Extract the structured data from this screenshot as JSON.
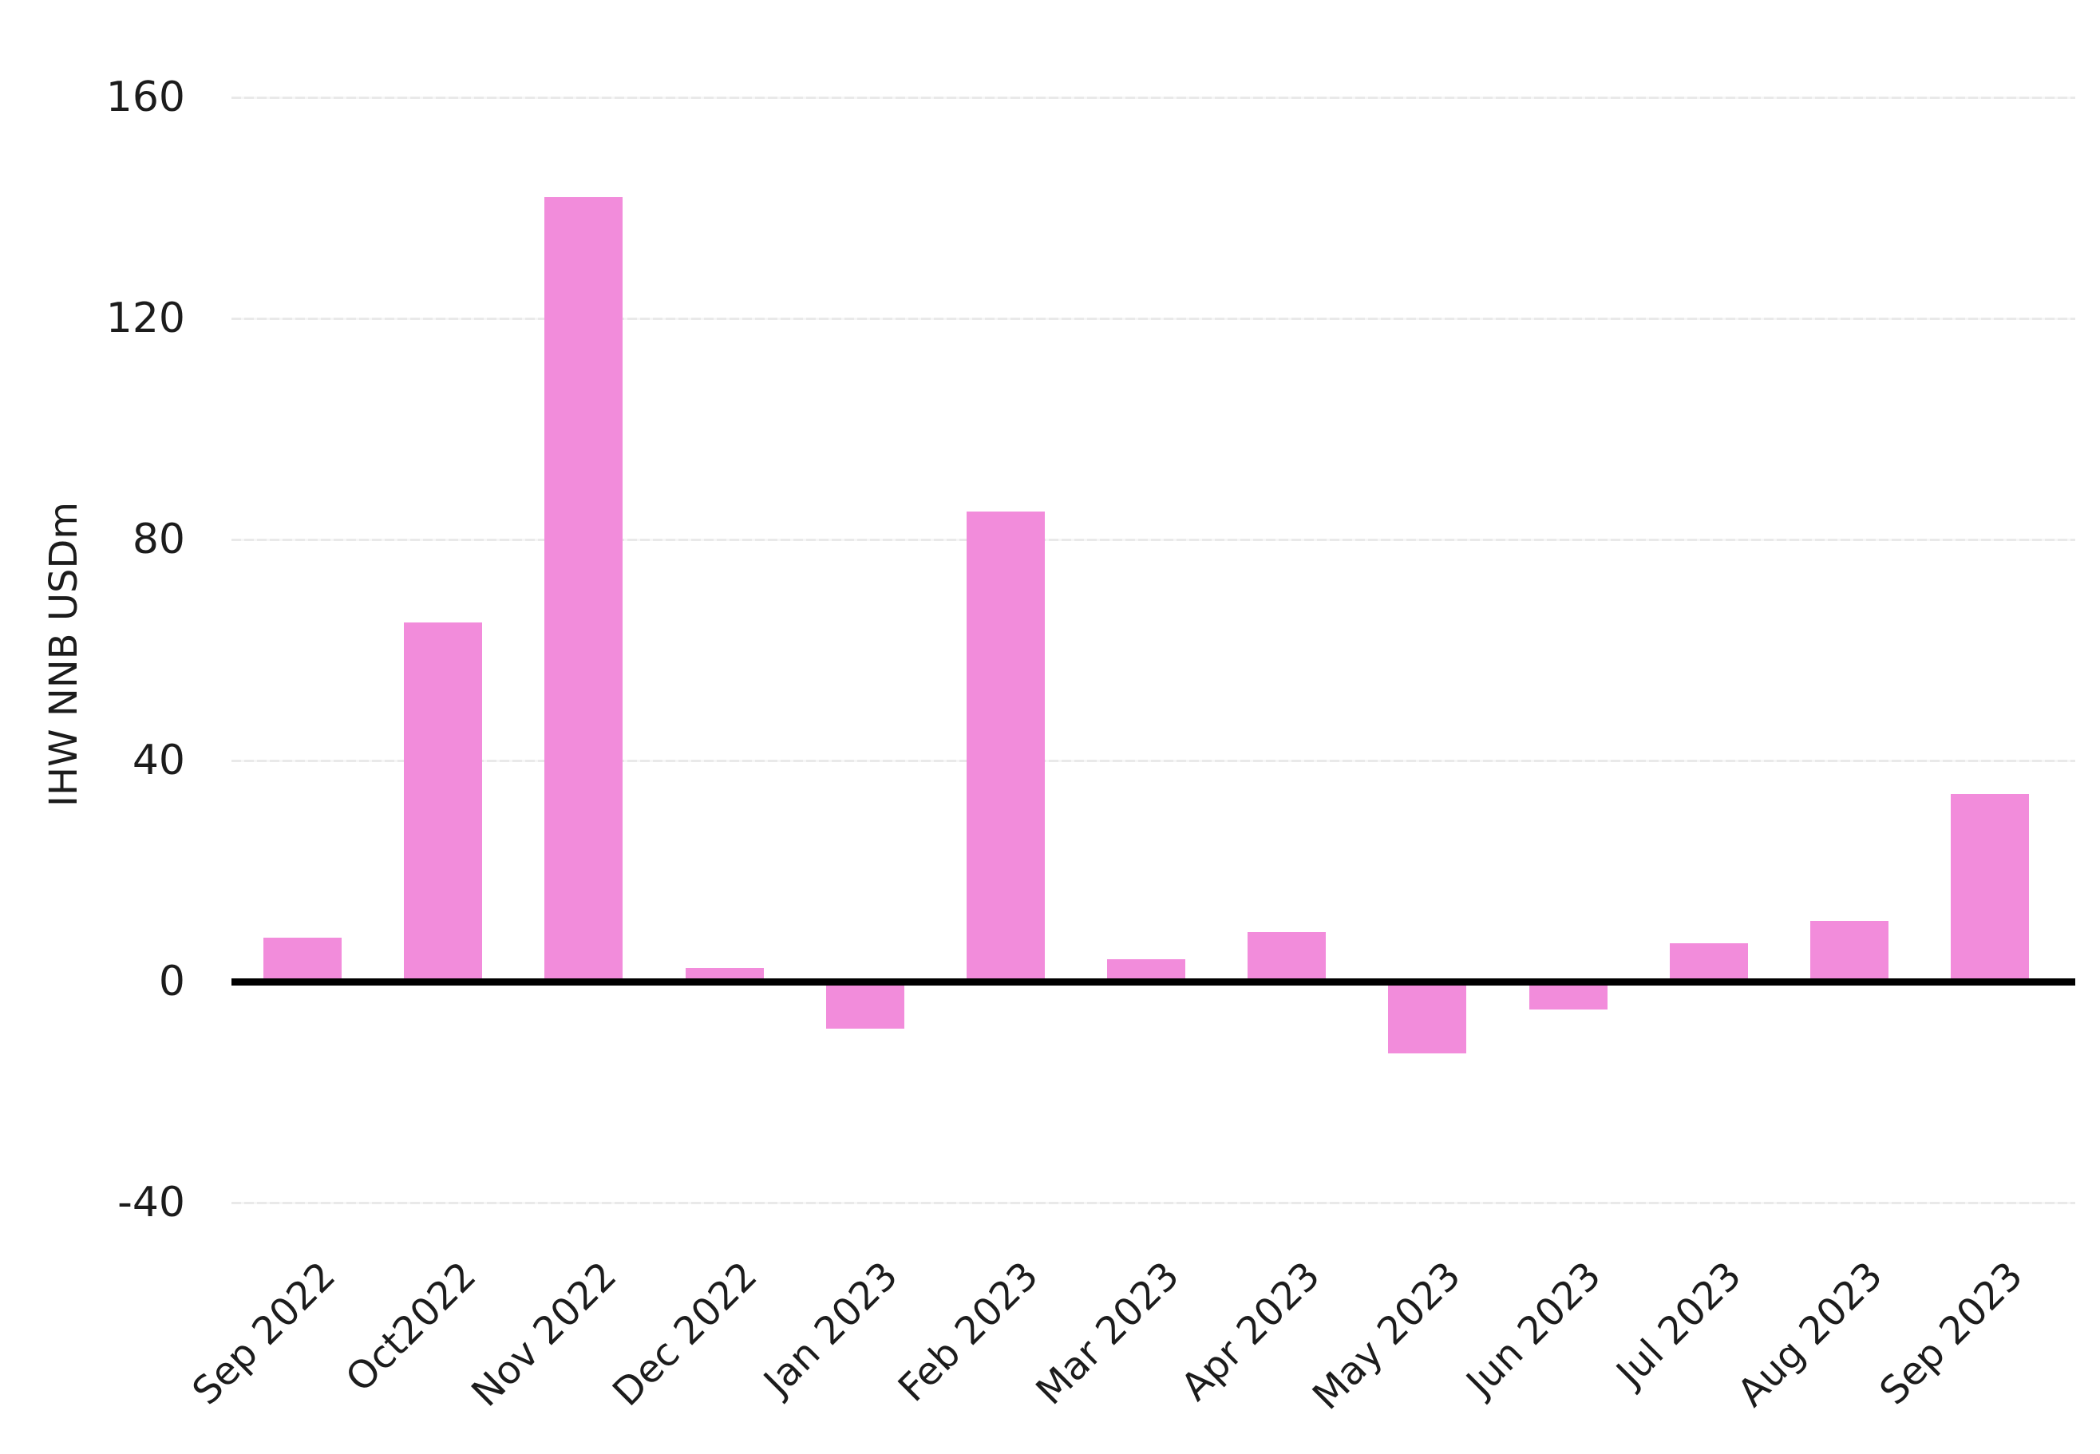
{
  "chart_data": {
    "type": "bar",
    "title": "",
    "xlabel": "",
    "ylabel": "IHW NNB USDm",
    "categories": [
      "Sep 2022",
      "Oct2022",
      "Nov 2022",
      "Dec 2022",
      "Jan 2023",
      "Feb 2023",
      "Mar 2023",
      "Apr 2023",
      "May 2023",
      "Jun 2023",
      "Jul 2023",
      "Aug 2023",
      "Sep 2023"
    ],
    "values": [
      8,
      65,
      142,
      2.5,
      -8.5,
      85,
      4,
      9,
      -13,
      -5,
      7,
      11,
      34
    ],
    "yticks": [
      160,
      120,
      80,
      40,
      0,
      -40
    ],
    "ylim": [
      -55,
      170
    ],
    "grid": "horizontal, at 160/120/80/40/-40, none at 0 (solid black zero axis line instead)",
    "legend": "none",
    "colors": {
      "bar": "#F28CDB",
      "gridline": "#ECECEC",
      "zero_axis_line": "#000000",
      "text": "#1C1C1C",
      "background": "#FFFFFF"
    }
  }
}
